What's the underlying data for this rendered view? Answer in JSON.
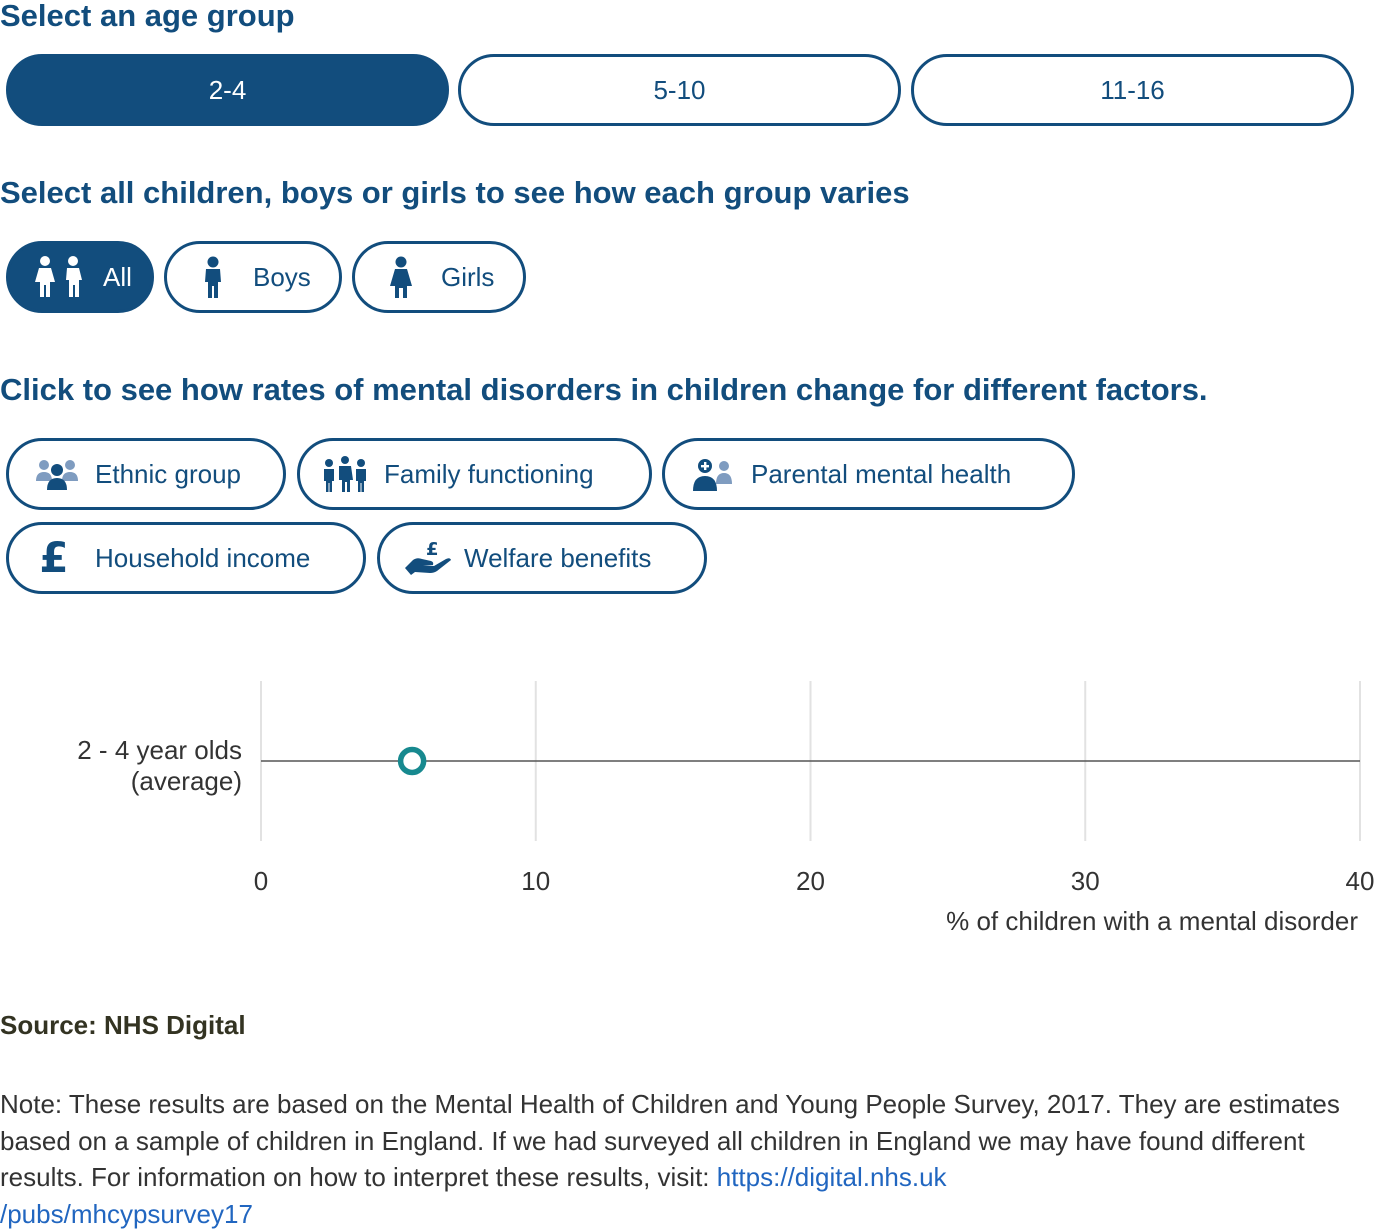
{
  "age_section": {
    "heading": "Select an age group",
    "options": [
      "2-4",
      "5-10",
      "11-16"
    ],
    "selected": "2-4"
  },
  "gender_section": {
    "heading": "Select all children, boys or girls to see how each group varies",
    "options": [
      {
        "label": "All",
        "icon": "two-children-icon"
      },
      {
        "label": "Boys",
        "icon": "boy-icon"
      },
      {
        "label": "Girls",
        "icon": "girl-icon"
      }
    ],
    "selected": "All"
  },
  "factor_section": {
    "heading": "Click to see how rates of mental disorders in children change for different factors.",
    "options": [
      {
        "label": "Ethnic group",
        "icon": "people-group-icon"
      },
      {
        "label": "Family functioning",
        "icon": "family-icon"
      },
      {
        "label": "Parental mental health",
        "icon": "parent-health-icon"
      },
      {
        "label": "Household income",
        "icon": "pound-icon"
      },
      {
        "label": "Welfare benefits",
        "icon": "hand-pound-icon"
      }
    ]
  },
  "chart_data": {
    "type": "scatter",
    "categories": [
      "2 - 4 year olds (average)"
    ],
    "category_lines": [
      "2 - 4 year olds",
      "(average)"
    ],
    "series": [
      {
        "values": [
          5.5
        ]
      }
    ],
    "xlim": [
      0,
      40
    ],
    "xticks": [
      "0",
      "10",
      "20",
      "30",
      "40"
    ],
    "xlabel": "% of children with a mental disorder",
    "grid": true,
    "marker_color": "#17898f"
  },
  "source": "Source: NHS Digital",
  "note": {
    "text": "Note: These results are based on the Mental Health of Children and Young People Survey, 2017. They are estimates based on a sample of children in England. If we had surveyed all children in England we may have found different results. For information on how to interpret these results, visit: ",
    "link": "https://digital.nhs.uk/pubs/mhcypsurvey17",
    "link_line1": "https://digital.nhs.uk",
    "link_line2": "/pubs/mhcypsurvey17"
  },
  "colors": {
    "primary": "#124d7d",
    "marker": "#17898f",
    "link": "#2166c0",
    "icon_light": "#7f9cc0"
  }
}
